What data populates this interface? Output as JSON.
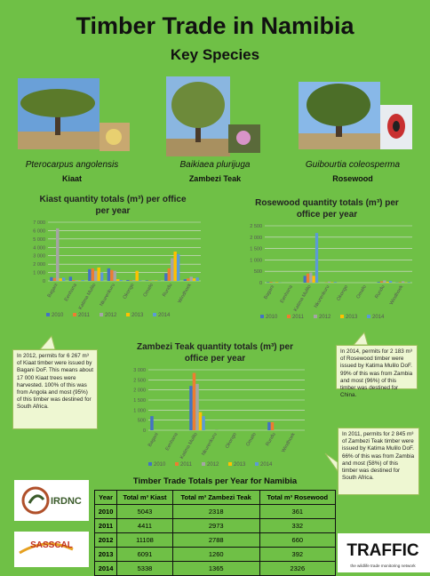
{
  "header": {
    "title": "Timber Trade in Namibia",
    "subtitle": "Key Species"
  },
  "species": [
    {
      "latin": "Pterocarpus angolensis",
      "name": "Kiaat"
    },
    {
      "latin": "Baikiaea plurijuga",
      "name": "Zambezi Teak"
    },
    {
      "latin": "Guibourtia coleosperma",
      "name": "Rosewood"
    }
  ],
  "chart_data": [
    {
      "type": "bar",
      "title": "Kiast quantity totals (m³) per office per year",
      "categories": [
        "Bagani",
        "Eenhana",
        "Katima Mulilo",
        "Nkurenkuru",
        "Okongo",
        "Omafo",
        "Rundu",
        "Windhoek"
      ],
      "ylim": [
        0,
        7000
      ],
      "yticks": [
        0,
        {
          "value": 1000,
          "label": "1 000"
        },
        {
          "value": 2000,
          "label": "2 000"
        },
        {
          "value": 3000,
          "label": "3 000"
        },
        {
          "value": 4000,
          "label": "4 000"
        },
        {
          "value": 5000,
          "label": "5 000"
        },
        {
          "value": 6000,
          "label": "6 000"
        },
        {
          "value": 7000,
          "label": "7 000"
        }
      ],
      "grid": true,
      "series": [
        {
          "name": "2010",
          "color": "#4472c4",
          "values": [
            450,
            500,
            1400,
            1500,
            100,
            50,
            900,
            200
          ]
        },
        {
          "name": "2011",
          "color": "#ed7d31",
          "values": [
            350,
            100,
            1500,
            1300,
            50,
            50,
            1500,
            300
          ]
        },
        {
          "name": "2012",
          "color": "#a5a5a5",
          "values": [
            6267,
            80,
            1200,
            1200,
            80,
            50,
            2700,
            500
          ]
        },
        {
          "name": "2013",
          "color": "#ffc000",
          "values": [
            300,
            50,
            1600,
            200,
            1200,
            50,
            3500,
            300
          ]
        },
        {
          "name": "2014",
          "color": "#5b9bd5",
          "values": [
            400,
            100,
            1000,
            100,
            50,
            50,
            3200,
            400
          ]
        }
      ]
    },
    {
      "type": "bar",
      "title": "Rosewood quantity totals (m³) per office per year",
      "categories": [
        "Bagani",
        "Eenhana",
        "Katima Mulilo",
        "Nkurenkuru",
        "Okongo",
        "Omafo",
        "Rundu",
        "Windhoek"
      ],
      "ylim": [
        0,
        2500
      ],
      "yticks": [
        0,
        500,
        {
          "value": 1000,
          "label": "1 000"
        },
        {
          "value": 1500,
          "label": "1 500"
        },
        {
          "value": 2000,
          "label": "2 000"
        },
        {
          "value": 2500,
          "label": "2 500"
        }
      ],
      "grid": true,
      "series": [
        {
          "name": "2010",
          "color": "#4472c4",
          "values": [
            20,
            0,
            300,
            0,
            0,
            0,
            30,
            10
          ]
        },
        {
          "name": "2011",
          "color": "#ed7d31",
          "values": [
            30,
            0,
            400,
            10,
            0,
            0,
            60,
            20
          ]
        },
        {
          "name": "2012",
          "color": "#a5a5a5",
          "values": [
            10,
            0,
            450,
            50,
            0,
            0,
            100,
            60
          ]
        },
        {
          "name": "2013",
          "color": "#ffc000",
          "values": [
            20,
            0,
            300,
            20,
            0,
            0,
            40,
            10
          ]
        },
        {
          "name": "2014",
          "color": "#5b9bd5",
          "values": [
            10,
            0,
            2183,
            30,
            0,
            0,
            80,
            20
          ]
        }
      ]
    },
    {
      "type": "bar",
      "title": "Zambezi Teak quantity totals (m³) per office per year",
      "categories": [
        "Bagani",
        "Eenhana",
        "Katima Mulilo",
        "Nkurenkuru",
        "Okongo",
        "Omafo",
        "Rundu",
        "Windhoek"
      ],
      "ylim": [
        0,
        3000
      ],
      "yticks": [
        0,
        500,
        {
          "value": 1000,
          "label": "1 000"
        },
        {
          "value": 1500,
          "label": "1 500"
        },
        {
          "value": 2000,
          "label": "2 000"
        },
        {
          "value": 2500,
          "label": "2 500"
        },
        {
          "value": 3000,
          "label": "3 000"
        }
      ],
      "grid": true,
      "series": [
        {
          "name": "2010",
          "color": "#4472c4",
          "values": [
            700,
            0,
            2200,
            0,
            0,
            0,
            400,
            0
          ]
        },
        {
          "name": "2011",
          "color": "#ed7d31",
          "values": [
            0,
            0,
            2845,
            0,
            0,
            0,
            400,
            0
          ]
        },
        {
          "name": "2012",
          "color": "#a5a5a5",
          "values": [
            0,
            0,
            2300,
            20,
            0,
            0,
            0,
            0
          ]
        },
        {
          "name": "2013",
          "color": "#ffc000",
          "values": [
            0,
            0,
            900,
            0,
            0,
            0,
            0,
            0
          ]
        },
        {
          "name": "2014",
          "color": "#5b9bd5",
          "values": [
            0,
            0,
            700,
            0,
            0,
            0,
            0,
            0
          ]
        }
      ]
    }
  ],
  "notes": [
    "In 2012, permits for 6 267 m³ of Kiaat timber were issued by Bagani DoF. This means about 17 000 Kiaat trees were harvested. 100% of this was from Angola and most (95%) of this timber was destined for South Africa.",
    "In 2014, permits for 2 183 m³ of Rosewood timber were issued by Katima Mulilo DoF. 99% of this was from Zambia and most (96%) of this timber was destined for China.",
    "In 2011, permits for 2 845 m³ of Zambezi Teak timber were issued by Katima Mulilo DoF. 66% of this was from Zambia and most (58%) of this timber was destined for South Africa."
  ],
  "table": {
    "title": "Timber Trade Totals per Year for Namibia",
    "header": [
      "Year",
      "Total m³ Kiast",
      "Total m³ Zambezi Teak",
      "Total m³ Rosewood"
    ],
    "rows": [
      [
        2010,
        5043,
        2318,
        361
      ],
      [
        2011,
        4411,
        2973,
        332
      ],
      [
        2012,
        11108,
        2788,
        660
      ],
      [
        2013,
        6091,
        1260,
        392
      ],
      [
        2014,
        5338,
        1365,
        2326
      ]
    ]
  },
  "logos": {
    "irdnc": "IRDNC",
    "sasscal": "SASSCAL",
    "traffic": "TRAFFIC",
    "traffic_tagline": "the wildlife trade monitoring network"
  }
}
